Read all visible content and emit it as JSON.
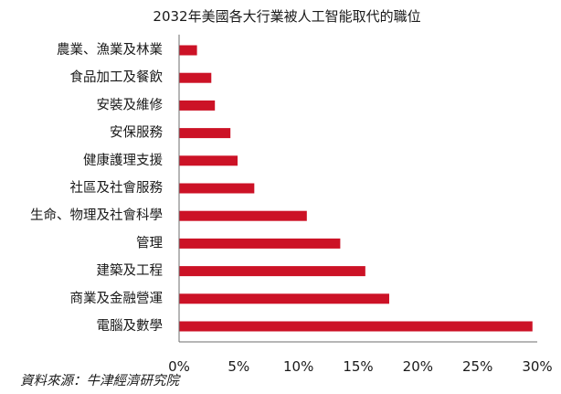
{
  "chart_data": {
    "type": "bar",
    "orientation": "horizontal",
    "title": "2032年美國各大行業被人工智能取代的職位",
    "categories": [
      "農業、漁業及林業",
      "食品加工及餐飲",
      "安裝及維修",
      "安保服務",
      "健康護理支援",
      "社區及社會服務",
      "生命、物理及社會科學",
      "管理",
      "建築及工程",
      "商業及金融營運",
      "電腦及數學"
    ],
    "values": [
      1.5,
      2.7,
      3.0,
      4.3,
      4.9,
      6.3,
      10.7,
      13.5,
      15.6,
      17.6,
      29.6
    ],
    "value_unit": "%",
    "xlim": [
      0,
      30
    ],
    "xticks": [
      "0%",
      "5%",
      "10%",
      "15%",
      "20%",
      "25%",
      "30%"
    ],
    "xtick_values": [
      0,
      5,
      10,
      15,
      20,
      25,
      30
    ],
    "grid": false,
    "legend": "none",
    "bar_color": "#cc1226",
    "source": "資料來源：牛津經濟研究院"
  }
}
